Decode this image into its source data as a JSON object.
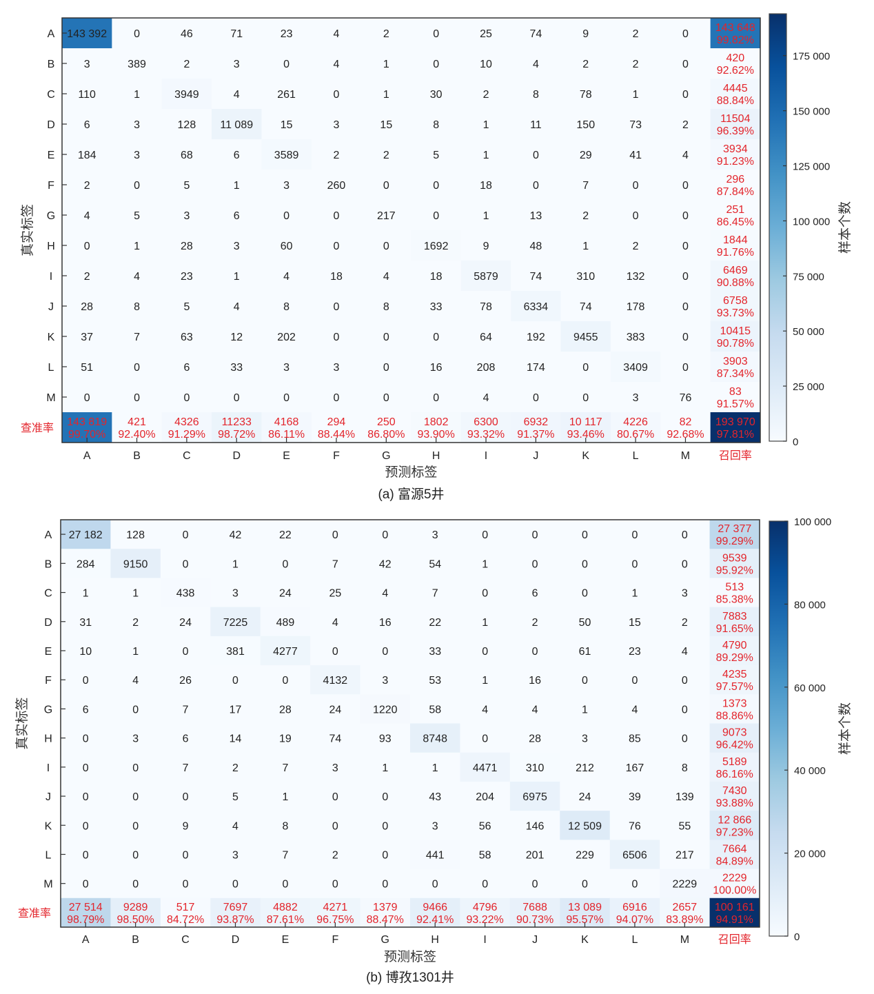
{
  "chart_data": [
    {
      "type": "heatmap",
      "caption": "(a) 富源5井",
      "xlabel": "预测标签",
      "ylabel": "真实标签",
      "colorbar_label": "样本个数",
      "precision_label": "查准率",
      "recall_label": "召回率",
      "row_labels": [
        "A",
        "B",
        "C",
        "D",
        "E",
        "F",
        "G",
        "H",
        "I",
        "J",
        "K",
        "L",
        "M"
      ],
      "col_labels": [
        "A",
        "B",
        "C",
        "D",
        "E",
        "F",
        "G",
        "H",
        "I",
        "J",
        "K",
        "L",
        "M"
      ],
      "matrix": [
        [
          "143 392",
          "0",
          "46",
          "71",
          "23",
          "4",
          "2",
          "0",
          "25",
          "74",
          "9",
          "2",
          "0"
        ],
        [
          "3",
          "389",
          "2",
          "3",
          "0",
          "4",
          "1",
          "0",
          "10",
          "4",
          "2",
          "2",
          "0"
        ],
        [
          "110",
          "1",
          "3949",
          "4",
          "261",
          "0",
          "1",
          "30",
          "2",
          "8",
          "78",
          "1",
          "0"
        ],
        [
          "6",
          "3",
          "128",
          "11 089",
          "15",
          "3",
          "15",
          "8",
          "1",
          "11",
          "150",
          "73",
          "2"
        ],
        [
          "184",
          "3",
          "68",
          "6",
          "3589",
          "2",
          "2",
          "5",
          "1",
          "0",
          "29",
          "41",
          "4"
        ],
        [
          "2",
          "0",
          "5",
          "1",
          "3",
          "260",
          "0",
          "0",
          "18",
          "0",
          "7",
          "0",
          "0"
        ],
        [
          "4",
          "5",
          "3",
          "6",
          "0",
          "0",
          "217",
          "0",
          "1",
          "13",
          "2",
          "0",
          "0"
        ],
        [
          "0",
          "1",
          "28",
          "3",
          "60",
          "0",
          "0",
          "1692",
          "9",
          "48",
          "1",
          "2",
          "0"
        ],
        [
          "2",
          "4",
          "23",
          "1",
          "4",
          "18",
          "4",
          "18",
          "5879",
          "74",
          "310",
          "132",
          "0"
        ],
        [
          "28",
          "8",
          "5",
          "4",
          "8",
          "0",
          "8",
          "33",
          "78",
          "6334",
          "74",
          "178",
          "0"
        ],
        [
          "37",
          "7",
          "63",
          "12",
          "202",
          "0",
          "0",
          "0",
          "64",
          "192",
          "9455",
          "383",
          "0"
        ],
        [
          "51",
          "0",
          "6",
          "33",
          "3",
          "3",
          "0",
          "16",
          "208",
          "174",
          "0",
          "3409",
          "0"
        ],
        [
          "0",
          "0",
          "0",
          "0",
          "0",
          "0",
          "0",
          "0",
          "4",
          "0",
          "0",
          "3",
          "76"
        ]
      ],
      "recall": [
        [
          "143 648",
          "99.82%"
        ],
        [
          "420",
          "92.62%"
        ],
        [
          "4445",
          "88.84%"
        ],
        [
          "11504",
          "96.39%"
        ],
        [
          "3934",
          "91.23%"
        ],
        [
          "296",
          "87.84%"
        ],
        [
          "251",
          "86.45%"
        ],
        [
          "1844",
          "91.76%"
        ],
        [
          "6469",
          "90.88%"
        ],
        [
          "6758",
          "93.73%"
        ],
        [
          "10415",
          "90.78%"
        ],
        [
          "3903",
          "87.34%"
        ],
        [
          "83",
          "91.57%"
        ]
      ],
      "precision": [
        [
          "143 819",
          "99.70%"
        ],
        [
          "421",
          "92.40%"
        ],
        [
          "4326",
          "91.29%"
        ],
        [
          "11233",
          "98.72%"
        ],
        [
          "4168",
          "86.11%"
        ],
        [
          "294",
          "88.44%"
        ],
        [
          "250",
          "86.80%"
        ],
        [
          "1802",
          "93.90%"
        ],
        [
          "6300",
          "93.32%"
        ],
        [
          "6932",
          "91.37%"
        ],
        [
          "10 117",
          "93.46%"
        ],
        [
          "4226",
          "80.67%"
        ],
        [
          "82",
          "92.68%"
        ]
      ],
      "total": [
        "193 970",
        "97.81%"
      ],
      "colorbar": {
        "min": 0,
        "max": 194000,
        "ticks": [
          0,
          25000,
          50000,
          75000,
          100000,
          125000,
          150000,
          175000
        ],
        "tick_labels": [
          "0",
          "25 000",
          "50 000",
          "75 000",
          "100 000",
          "125 000",
          "150 000",
          "175 000"
        ],
        "colors": [
          "#f7fbff",
          "#deebf7",
          "#c6dbef",
          "#9ecae1",
          "#6baed6",
          "#4292c6",
          "#2171b5",
          "#08519c",
          "#08306b"
        ]
      }
    },
    {
      "type": "heatmap",
      "caption": "(b) 博孜1301井",
      "xlabel": "预测标签",
      "ylabel": "真实标签",
      "colorbar_label": "样本个数",
      "precision_label": "查准率",
      "recall_label": "召回率",
      "row_labels": [
        "A",
        "B",
        "C",
        "D",
        "E",
        "F",
        "G",
        "H",
        "I",
        "J",
        "K",
        "L",
        "M"
      ],
      "col_labels": [
        "A",
        "B",
        "C",
        "D",
        "E",
        "F",
        "G",
        "H",
        "I",
        "J",
        "K",
        "L",
        "M"
      ],
      "matrix": [
        [
          "27 182",
          "128",
          "0",
          "42",
          "22",
          "0",
          "0",
          "3",
          "0",
          "0",
          "0",
          "0",
          "0"
        ],
        [
          "284",
          "9150",
          "0",
          "1",
          "0",
          "7",
          "42",
          "54",
          "1",
          "0",
          "0",
          "0",
          "0"
        ],
        [
          "1",
          "1",
          "438",
          "3",
          "24",
          "25",
          "4",
          "7",
          "0",
          "6",
          "0",
          "1",
          "3"
        ],
        [
          "31",
          "2",
          "24",
          "7225",
          "489",
          "4",
          "16",
          "22",
          "1",
          "2",
          "50",
          "15",
          "2"
        ],
        [
          "10",
          "1",
          "0",
          "381",
          "4277",
          "0",
          "0",
          "33",
          "0",
          "0",
          "61",
          "23",
          "4"
        ],
        [
          "0",
          "4",
          "26",
          "0",
          "0",
          "4132",
          "3",
          "53",
          "1",
          "16",
          "0",
          "0",
          "0"
        ],
        [
          "6",
          "0",
          "7",
          "17",
          "28",
          "24",
          "1220",
          "58",
          "4",
          "4",
          "1",
          "4",
          "0"
        ],
        [
          "0",
          "3",
          "6",
          "14",
          "19",
          "74",
          "93",
          "8748",
          "0",
          "28",
          "3",
          "85",
          "0"
        ],
        [
          "0",
          "0",
          "7",
          "2",
          "7",
          "3",
          "1",
          "1",
          "4471",
          "310",
          "212",
          "167",
          "8"
        ],
        [
          "0",
          "0",
          "0",
          "5",
          "1",
          "0",
          "0",
          "43",
          "204",
          "6975",
          "24",
          "39",
          "139"
        ],
        [
          "0",
          "0",
          "9",
          "4",
          "8",
          "0",
          "0",
          "3",
          "56",
          "146",
          "12 509",
          "76",
          "55"
        ],
        [
          "0",
          "0",
          "0",
          "3",
          "7",
          "2",
          "0",
          "441",
          "58",
          "201",
          "229",
          "6506",
          "217"
        ],
        [
          "0",
          "0",
          "0",
          "0",
          "0",
          "0",
          "0",
          "0",
          "0",
          "0",
          "0",
          "0",
          "2229"
        ]
      ],
      "recall": [
        [
          "27 377",
          "99.29%"
        ],
        [
          "9539",
          "95.92%"
        ],
        [
          "513",
          "85.38%"
        ],
        [
          "7883",
          "91.65%"
        ],
        [
          "4790",
          "89.29%"
        ],
        [
          "4235",
          "97.57%"
        ],
        [
          "1373",
          "88.86%"
        ],
        [
          "9073",
          "96.42%"
        ],
        [
          "5189",
          "86.16%"
        ],
        [
          "7430",
          "93.88%"
        ],
        [
          "12 866",
          "97.23%"
        ],
        [
          "7664",
          "84.89%"
        ],
        [
          "2229",
          "100.00%"
        ]
      ],
      "precision": [
        [
          "27 514",
          "98.79%"
        ],
        [
          "9289",
          "98.50%"
        ],
        [
          "517",
          "84.72%"
        ],
        [
          "7697",
          "93.87%"
        ],
        [
          "4882",
          "87.61%"
        ],
        [
          "4271",
          "96.75%"
        ],
        [
          "1379",
          "88.47%"
        ],
        [
          "9466",
          "92.41%"
        ],
        [
          "4796",
          "93.22%"
        ],
        [
          "7688",
          "90.73%"
        ],
        [
          "13 089",
          "95.57%"
        ],
        [
          "6916",
          "94.07%"
        ],
        [
          "2657",
          "83.89%"
        ]
      ],
      "total": [
        "100 161",
        "94.91%"
      ],
      "colorbar": {
        "min": 0,
        "max": 100000,
        "ticks": [
          0,
          20000,
          40000,
          60000,
          80000,
          100000
        ],
        "tick_labels": [
          "0",
          "20 000",
          "40 000",
          "60 000",
          "80 000",
          "100 000"
        ],
        "colors": [
          "#f7fbff",
          "#deebf7",
          "#c6dbef",
          "#9ecae1",
          "#6baed6",
          "#4292c6",
          "#2171b5",
          "#08519c",
          "#08306b"
        ]
      }
    }
  ]
}
